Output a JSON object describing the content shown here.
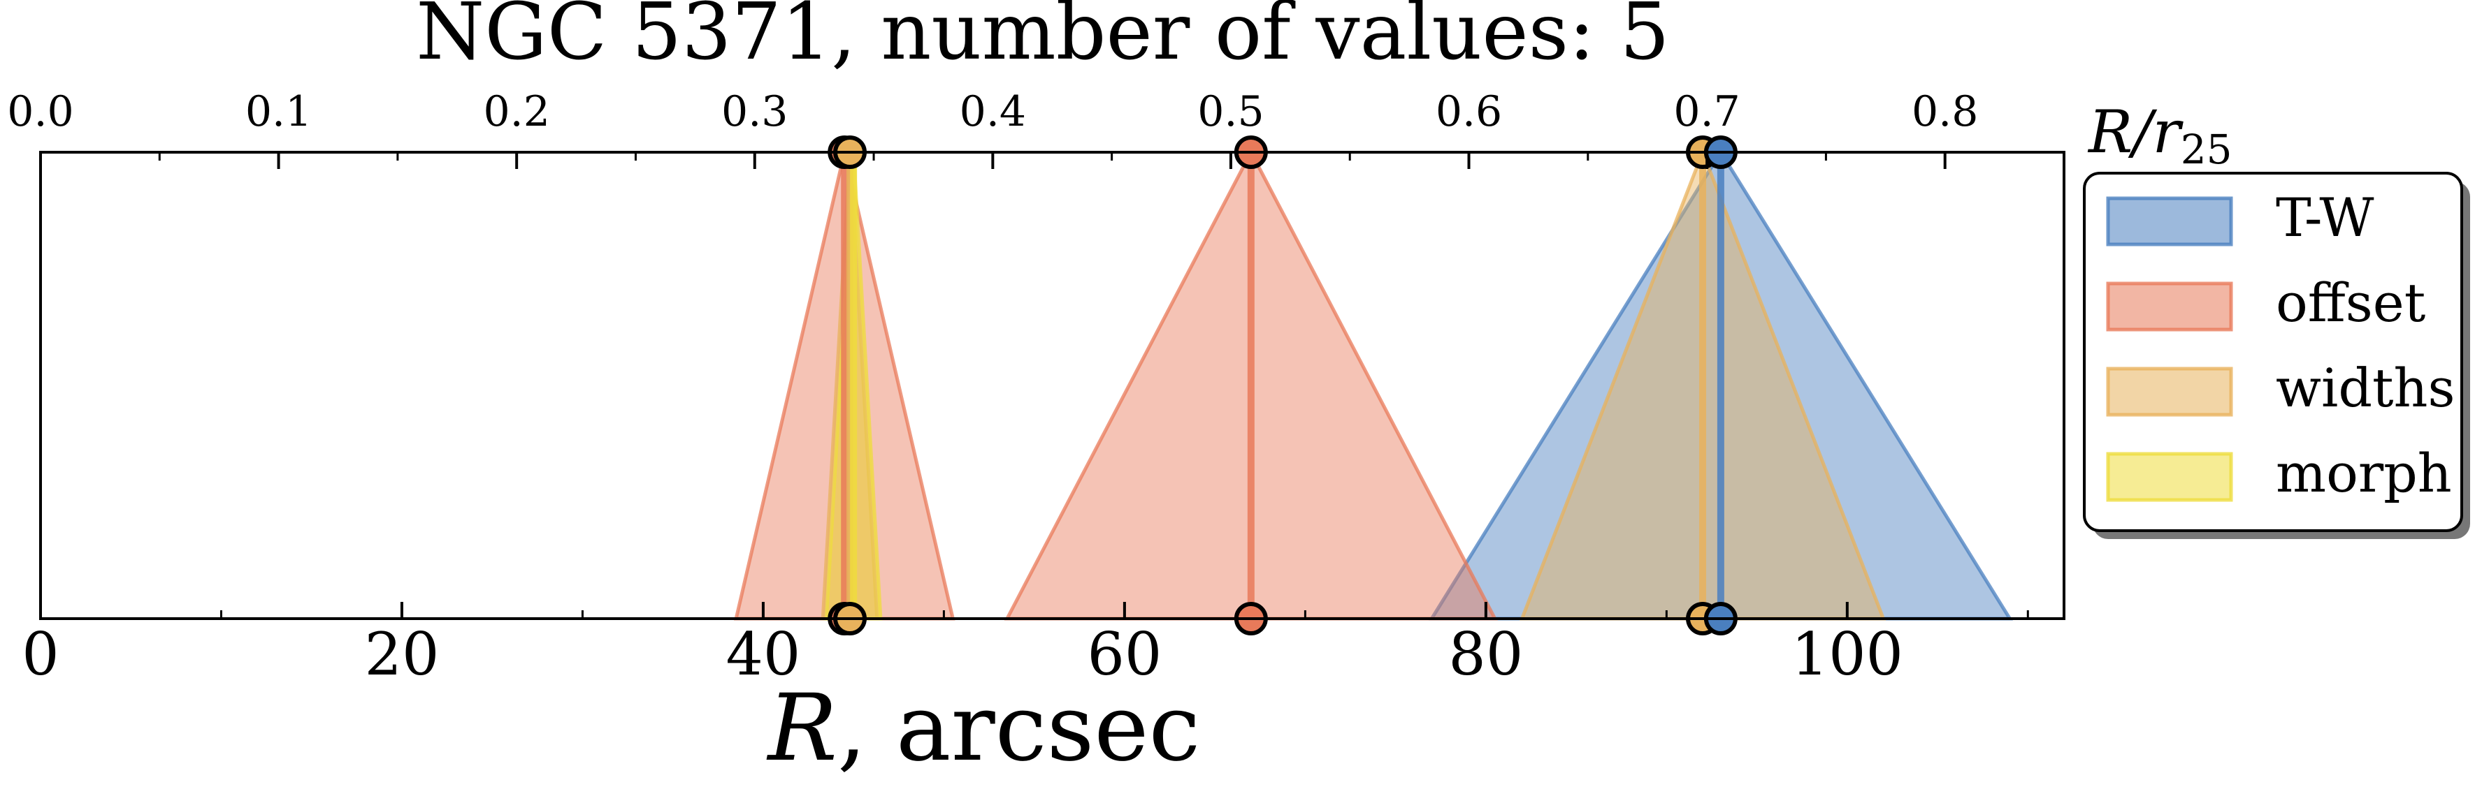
{
  "chart_data": {
    "type": "area",
    "title": "NGC 5371, number of values: 5",
    "xlabel": "R, arcsec",
    "xlabel_var": "R",
    "xlabel_unit": ", arcsec",
    "top_xlabel": "R/r25",
    "top_xlabel_main": "R/r",
    "top_xlabel_sub": "25",
    "xlim": [
      0,
      112
    ],
    "xticks": [
      0,
      20,
      40,
      60,
      80,
      100
    ],
    "xtick_labels": [
      "0",
      "20",
      "40",
      "60",
      "80",
      "100"
    ],
    "top_xlim": [
      0.0,
      0.85
    ],
    "top_xticks": [
      0.0,
      0.1,
      0.2,
      0.3,
      0.4,
      0.5,
      0.6,
      0.7,
      0.8
    ],
    "top_xtick_labels": [
      "0.0",
      "0.1",
      "0.2",
      "0.3",
      "0.4",
      "0.5",
      "0.6",
      "0.7",
      "0.8"
    ],
    "grid": false,
    "legend_position": "outside-right",
    "series": [
      {
        "name": "T-W",
        "color": "#4a7fbf",
        "values": [
          {
            "center": 93.0,
            "half_width": 16.0
          }
        ]
      },
      {
        "name": "offset",
        "color": "#e87a5a",
        "values": [
          {
            "center": 44.5,
            "half_width": 6.0
          },
          {
            "center": 67.0,
            "half_width": 13.5
          }
        ]
      },
      {
        "name": "widths",
        "color": "#e8b25c",
        "values": [
          {
            "center": 44.8,
            "half_width": 1.5
          },
          {
            "center": 92.0,
            "half_width": 10.0
          }
        ]
      },
      {
        "name": "morph",
        "color": "#eedc3c",
        "values": [
          {
            "center": 45.0,
            "half_width": 1.5
          }
        ]
      }
    ],
    "markers": [
      {
        "series": "offset",
        "x": 44.5
      },
      {
        "series": "offset",
        "x": 67.0
      },
      {
        "series": "widths",
        "x": 92.0
      },
      {
        "series": "T-W",
        "x": 93.0
      },
      {
        "series": "widths",
        "x": 44.8
      }
    ]
  }
}
